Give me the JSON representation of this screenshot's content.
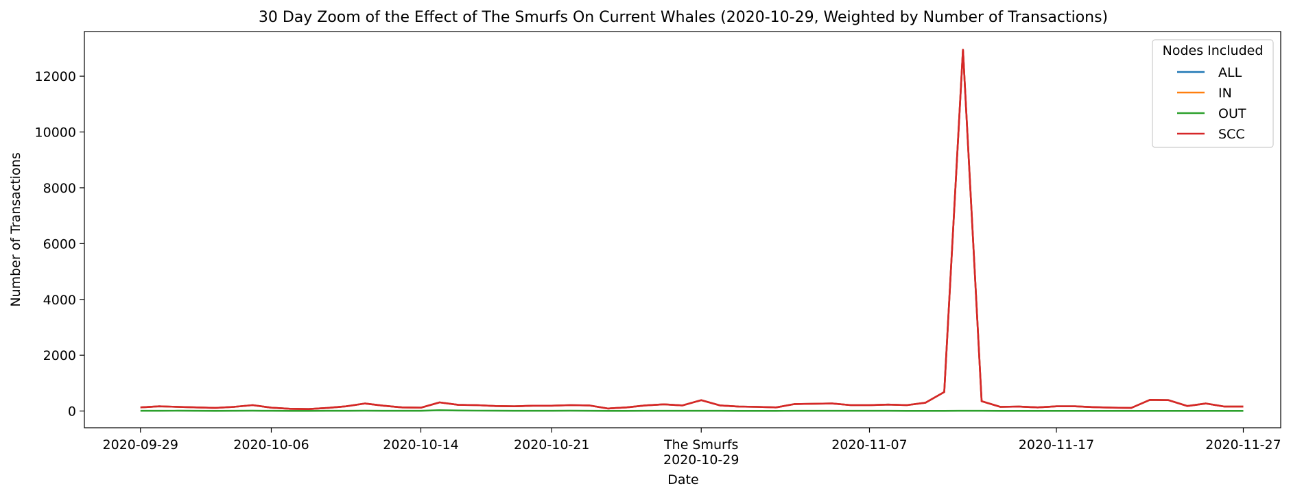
{
  "chart_data": {
    "type": "line",
    "title": "30 Day Zoom of the Effect of The Smurfs On Current Whales (2020-10-29, Weighted by Number of Transactions)",
    "xlabel": "Date",
    "ylabel": "Number of Transactions",
    "xlim": [
      "2020-09-26",
      "2020-11-29"
    ],
    "ylim": [
      -600,
      13600
    ],
    "x_ticks": [
      {
        "date": "2020-09-29",
        "label": "2020-09-29"
      },
      {
        "date": "2020-10-06",
        "label": "2020-10-06"
      },
      {
        "date": "2020-10-14",
        "label": "2020-10-14"
      },
      {
        "date": "2020-10-21",
        "label": "2020-10-21"
      },
      {
        "date": "2020-10-29",
        "label": "The Smurfs\n2020-10-29"
      },
      {
        "date": "2020-11-07",
        "label": "2020-11-07"
      },
      {
        "date": "2020-11-17",
        "label": "2020-11-17"
      },
      {
        "date": "2020-11-27",
        "label": "2020-11-27"
      }
    ],
    "y_ticks": [
      0,
      2000,
      4000,
      6000,
      8000,
      10000,
      12000
    ],
    "legend": {
      "title": "Nodes Included",
      "placement": "top-right"
    },
    "x": [
      "2020-09-29",
      "2020-09-30",
      "2020-10-01",
      "2020-10-02",
      "2020-10-03",
      "2020-10-04",
      "2020-10-05",
      "2020-10-06",
      "2020-10-07",
      "2020-10-08",
      "2020-10-09",
      "2020-10-10",
      "2020-10-11",
      "2020-10-12",
      "2020-10-13",
      "2020-10-14",
      "2020-10-15",
      "2020-10-16",
      "2020-10-17",
      "2020-10-18",
      "2020-10-19",
      "2020-10-20",
      "2020-10-21",
      "2020-10-22",
      "2020-10-23",
      "2020-10-24",
      "2020-10-25",
      "2020-10-26",
      "2020-10-27",
      "2020-10-28",
      "2020-10-29",
      "2020-10-30",
      "2020-10-31",
      "2020-11-01",
      "2020-11-02",
      "2020-11-03",
      "2020-11-04",
      "2020-11-05",
      "2020-11-06",
      "2020-11-07",
      "2020-11-08",
      "2020-11-09",
      "2020-11-10",
      "2020-11-11",
      "2020-11-12",
      "2020-11-13",
      "2020-11-14",
      "2020-11-15",
      "2020-11-16",
      "2020-11-17",
      "2020-11-18",
      "2020-11-19",
      "2020-11-20",
      "2020-11-21",
      "2020-11-22",
      "2020-11-23",
      "2020-11-24",
      "2020-11-25",
      "2020-11-26",
      "2020-11-27"
    ],
    "series": [
      {
        "name": "ALL",
        "color": "#1f77b4",
        "values": [
          130,
          170,
          150,
          130,
          110,
          150,
          210,
          120,
          80,
          70,
          110,
          170,
          270,
          190,
          130,
          120,
          310,
          220,
          210,
          180,
          170,
          190,
          190,
          210,
          200,
          90,
          130,
          200,
          240,
          200,
          390,
          200,
          160,
          150,
          130,
          250,
          260,
          270,
          210,
          210,
          230,
          210,
          300,
          680,
          12950,
          350,
          150,
          160,
          130,
          170,
          170,
          140,
          120,
          110,
          400,
          390,
          180,
          270,
          160,
          160
        ]
      },
      {
        "name": "IN",
        "color": "#ff7f0e",
        "values": [
          130,
          170,
          150,
          130,
          110,
          150,
          210,
          120,
          80,
          70,
          110,
          170,
          270,
          190,
          130,
          120,
          310,
          220,
          210,
          180,
          170,
          190,
          190,
          210,
          200,
          90,
          130,
          200,
          240,
          200,
          390,
          200,
          160,
          150,
          130,
          250,
          260,
          270,
          210,
          210,
          230,
          210,
          300,
          680,
          12950,
          350,
          150,
          160,
          130,
          170,
          170,
          140,
          120,
          110,
          400,
          390,
          180,
          270,
          160,
          160
        ]
      },
      {
        "name": "OUT",
        "color": "#2ca02c",
        "values": [
          10,
          10,
          12,
          10,
          8,
          10,
          12,
          10,
          8,
          8,
          10,
          10,
          12,
          10,
          10,
          10,
          30,
          20,
          15,
          12,
          10,
          10,
          10,
          12,
          10,
          8,
          8,
          10,
          10,
          10,
          10,
          10,
          8,
          8,
          8,
          10,
          10,
          10,
          10,
          10,
          10,
          8,
          8,
          8,
          10,
          10,
          8,
          8,
          8,
          8,
          8,
          8,
          8,
          8,
          8,
          8,
          8,
          8,
          8,
          8
        ]
      },
      {
        "name": "SCC",
        "color": "#d62728",
        "values": [
          130,
          170,
          150,
          130,
          110,
          150,
          210,
          120,
          80,
          70,
          110,
          170,
          270,
          190,
          130,
          120,
          310,
          220,
          210,
          180,
          170,
          190,
          190,
          210,
          200,
          90,
          130,
          200,
          240,
          200,
          390,
          200,
          160,
          150,
          130,
          250,
          260,
          270,
          210,
          210,
          230,
          210,
          300,
          680,
          12950,
          350,
          150,
          160,
          130,
          170,
          170,
          140,
          120,
          110,
          400,
          390,
          180,
          270,
          160,
          160
        ]
      }
    ]
  }
}
